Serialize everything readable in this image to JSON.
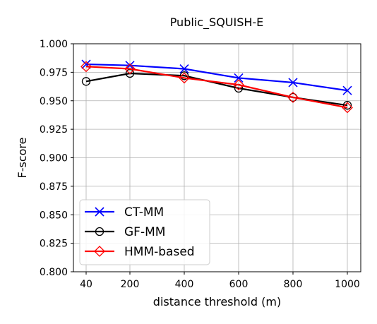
{
  "chart_data": {
    "type": "line",
    "title": "Public_SQUISH-E",
    "xlabel": "distance threshold (m)",
    "ylabel": "F-score",
    "x": [
      "40",
      "200",
      "400",
      "600",
      "800",
      "1000"
    ],
    "ylim": [
      0.8,
      1.0
    ],
    "yticks": [
      "0.800",
      "0.825",
      "0.850",
      "0.875",
      "0.900",
      "0.925",
      "0.950",
      "0.975",
      "1.000"
    ],
    "grid": true,
    "legend_position": "lower-left",
    "series": [
      {
        "name": "CT-MM",
        "color": "#0000ff",
        "marker": "x",
        "values": [
          0.982,
          0.981,
          0.978,
          0.97,
          0.966,
          0.959
        ]
      },
      {
        "name": "GF-MM",
        "color": "#000000",
        "marker": "circle",
        "values": [
          0.967,
          0.974,
          0.972,
          0.961,
          0.953,
          0.946
        ]
      },
      {
        "name": "HMM-based",
        "color": "#ff0000",
        "marker": "diamond",
        "values": [
          0.98,
          0.978,
          0.97,
          0.964,
          0.953,
          0.944
        ]
      }
    ]
  }
}
